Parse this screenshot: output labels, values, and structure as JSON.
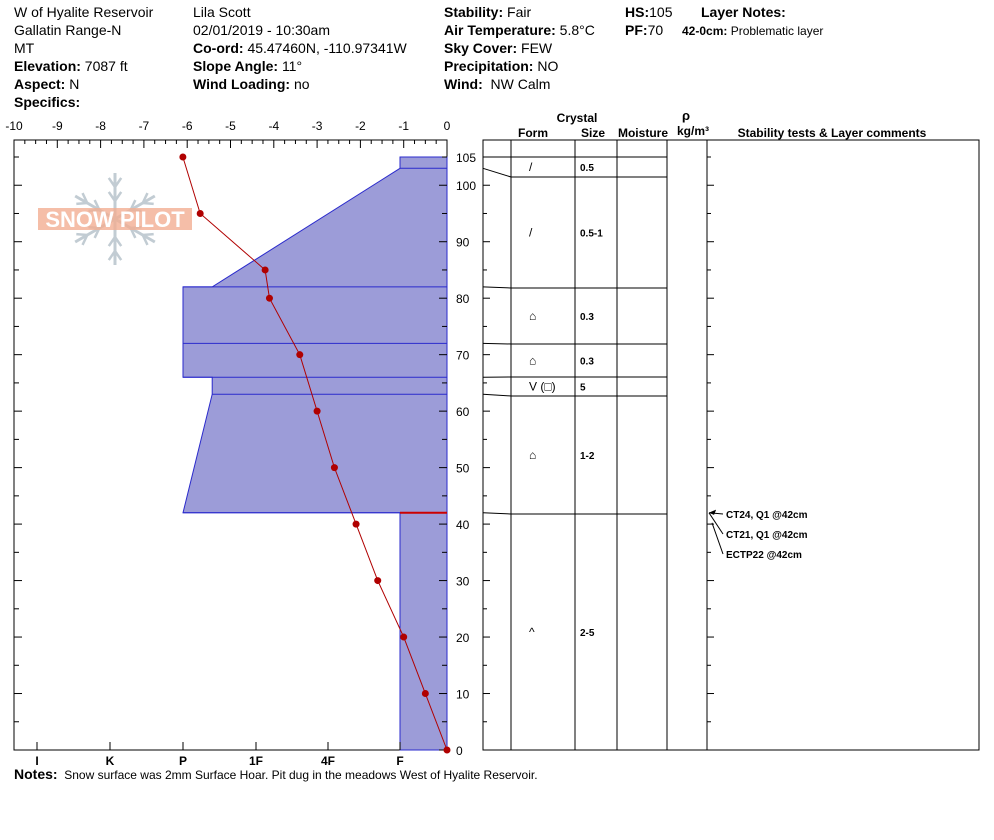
{
  "header": {
    "location": "W of Hyalite Reservoir",
    "range": "Gallatin Range-N",
    "state": "MT",
    "elevation_label": "Elevation:",
    "elevation": "7087 ft",
    "aspect_label": "Aspect:",
    "aspect": "N",
    "specifics_label": "Specifics:",
    "observer": "Lila Scott",
    "datetime": "02/01/2019 - 10:30am",
    "coord_label": "Co-ord:",
    "coord": "45.47460N, -110.97341W",
    "slope_label": "Slope Angle:",
    "slope": "11°",
    "wind_loading_label": "Wind Loading:",
    "wind_loading": "no",
    "stability_label": "Stability:",
    "stability": "Fair",
    "air_temp_label": "Air Temperature:",
    "air_temp": "5.8°C",
    "sky_label": "Sky Cover:",
    "sky": "FEW",
    "precip_label": "Precipitation:",
    "precip": "NO",
    "wind_label": "Wind:",
    "wind": "NW Calm",
    "hs_label": "HS:",
    "hs": "105",
    "pf_label": "PF:",
    "pf": "70",
    "layer_notes_label": "Layer Notes:",
    "layer_note_depth": "42-0cm:",
    "layer_note_text": "Problematic layer"
  },
  "logo_text": "SNOW PILOT",
  "table_headers": {
    "crystal": "Crystal",
    "form": "Form",
    "size": "Size",
    "moisture": "Moisture",
    "rho": "ρ",
    "density_unit": "kg/m³",
    "comments": "Stability tests & Layer comments"
  },
  "notes": {
    "label": "Notes:",
    "text": "Snow surface was 2mm Surface Hoar. Pit dug in the meadows West of Hyalite Reservoir."
  },
  "colors": {
    "hardness_fill": "#9c9cd8",
    "hardness_stroke": "#2a2acc",
    "temp_line": "#b00000",
    "weak_layer": "#cc0000",
    "logo_orange": "#f0a080",
    "logo_gray": "#b8c4cc"
  },
  "chart_data": {
    "type": "line",
    "title": "",
    "y_axis": {
      "label": "",
      "range": [
        0,
        105
      ],
      "ticks": [
        0,
        10,
        20,
        30,
        40,
        50,
        60,
        70,
        80,
        90,
        100,
        105
      ]
    },
    "temp_axis": {
      "label": "",
      "range": [
        -10,
        0
      ],
      "ticks": [
        -10,
        -9,
        -8,
        -7,
        -6,
        -5,
        -4,
        -3,
        -2,
        -1,
        0
      ]
    },
    "hardness_axis": {
      "labels": [
        "I",
        "K",
        "P",
        "1F",
        "4F",
        "F"
      ],
      "values": [
        5,
        4,
        3,
        2,
        1.4,
        1
      ]
    },
    "temperature_profile": [
      {
        "height": 105,
        "temp": -6.1
      },
      {
        "height": 95,
        "temp": -5.7
      },
      {
        "height": 85,
        "temp": -4.2
      },
      {
        "height": 80,
        "temp": -4.1
      },
      {
        "height": 70,
        "temp": -3.4
      },
      {
        "height": 60,
        "temp": -3.0
      },
      {
        "height": 50,
        "temp": -2.6
      },
      {
        "height": 40,
        "temp": -2.1
      },
      {
        "height": 30,
        "temp": -1.6
      },
      {
        "height": 20,
        "temp": -1.0
      },
      {
        "height": 10,
        "temp": -0.5
      },
      {
        "height": 0,
        "temp": 0
      }
    ],
    "layers": [
      {
        "top": 105,
        "bottom": 103,
        "hardness_top": 1,
        "hardness_bottom": 1,
        "form": "/",
        "size": "0.5"
      },
      {
        "top": 103,
        "bottom": 82,
        "hardness_top": 1,
        "hardness_bottom": 2.6,
        "form": "/",
        "size": "0.5-1"
      },
      {
        "top": 82,
        "bottom": 72,
        "hardness_top": 3,
        "hardness_bottom": 3,
        "form": "⌂",
        "size": "0.3"
      },
      {
        "top": 72,
        "bottom": 66,
        "hardness_top": 3,
        "hardness_bottom": 3,
        "form": "⌂",
        "size": "0.3"
      },
      {
        "top": 66,
        "bottom": 63,
        "hardness_top": 2.6,
        "hardness_bottom": 2.6,
        "form": "V (□)",
        "size": "5"
      },
      {
        "top": 63,
        "bottom": 42,
        "hardness_top": 2.6,
        "hardness_bottom": 3,
        "form": "⌂",
        "size": "1-2"
      },
      {
        "top": 42,
        "bottom": 0,
        "hardness_top": 1,
        "hardness_bottom": 1,
        "form": "^",
        "size": "2-5"
      }
    ],
    "weak_layer_height": 42,
    "stability_tests": [
      "CT24, Q1 @42cm",
      "CT21, Q1 @42cm",
      "ECTP22 @42cm"
    ]
  }
}
